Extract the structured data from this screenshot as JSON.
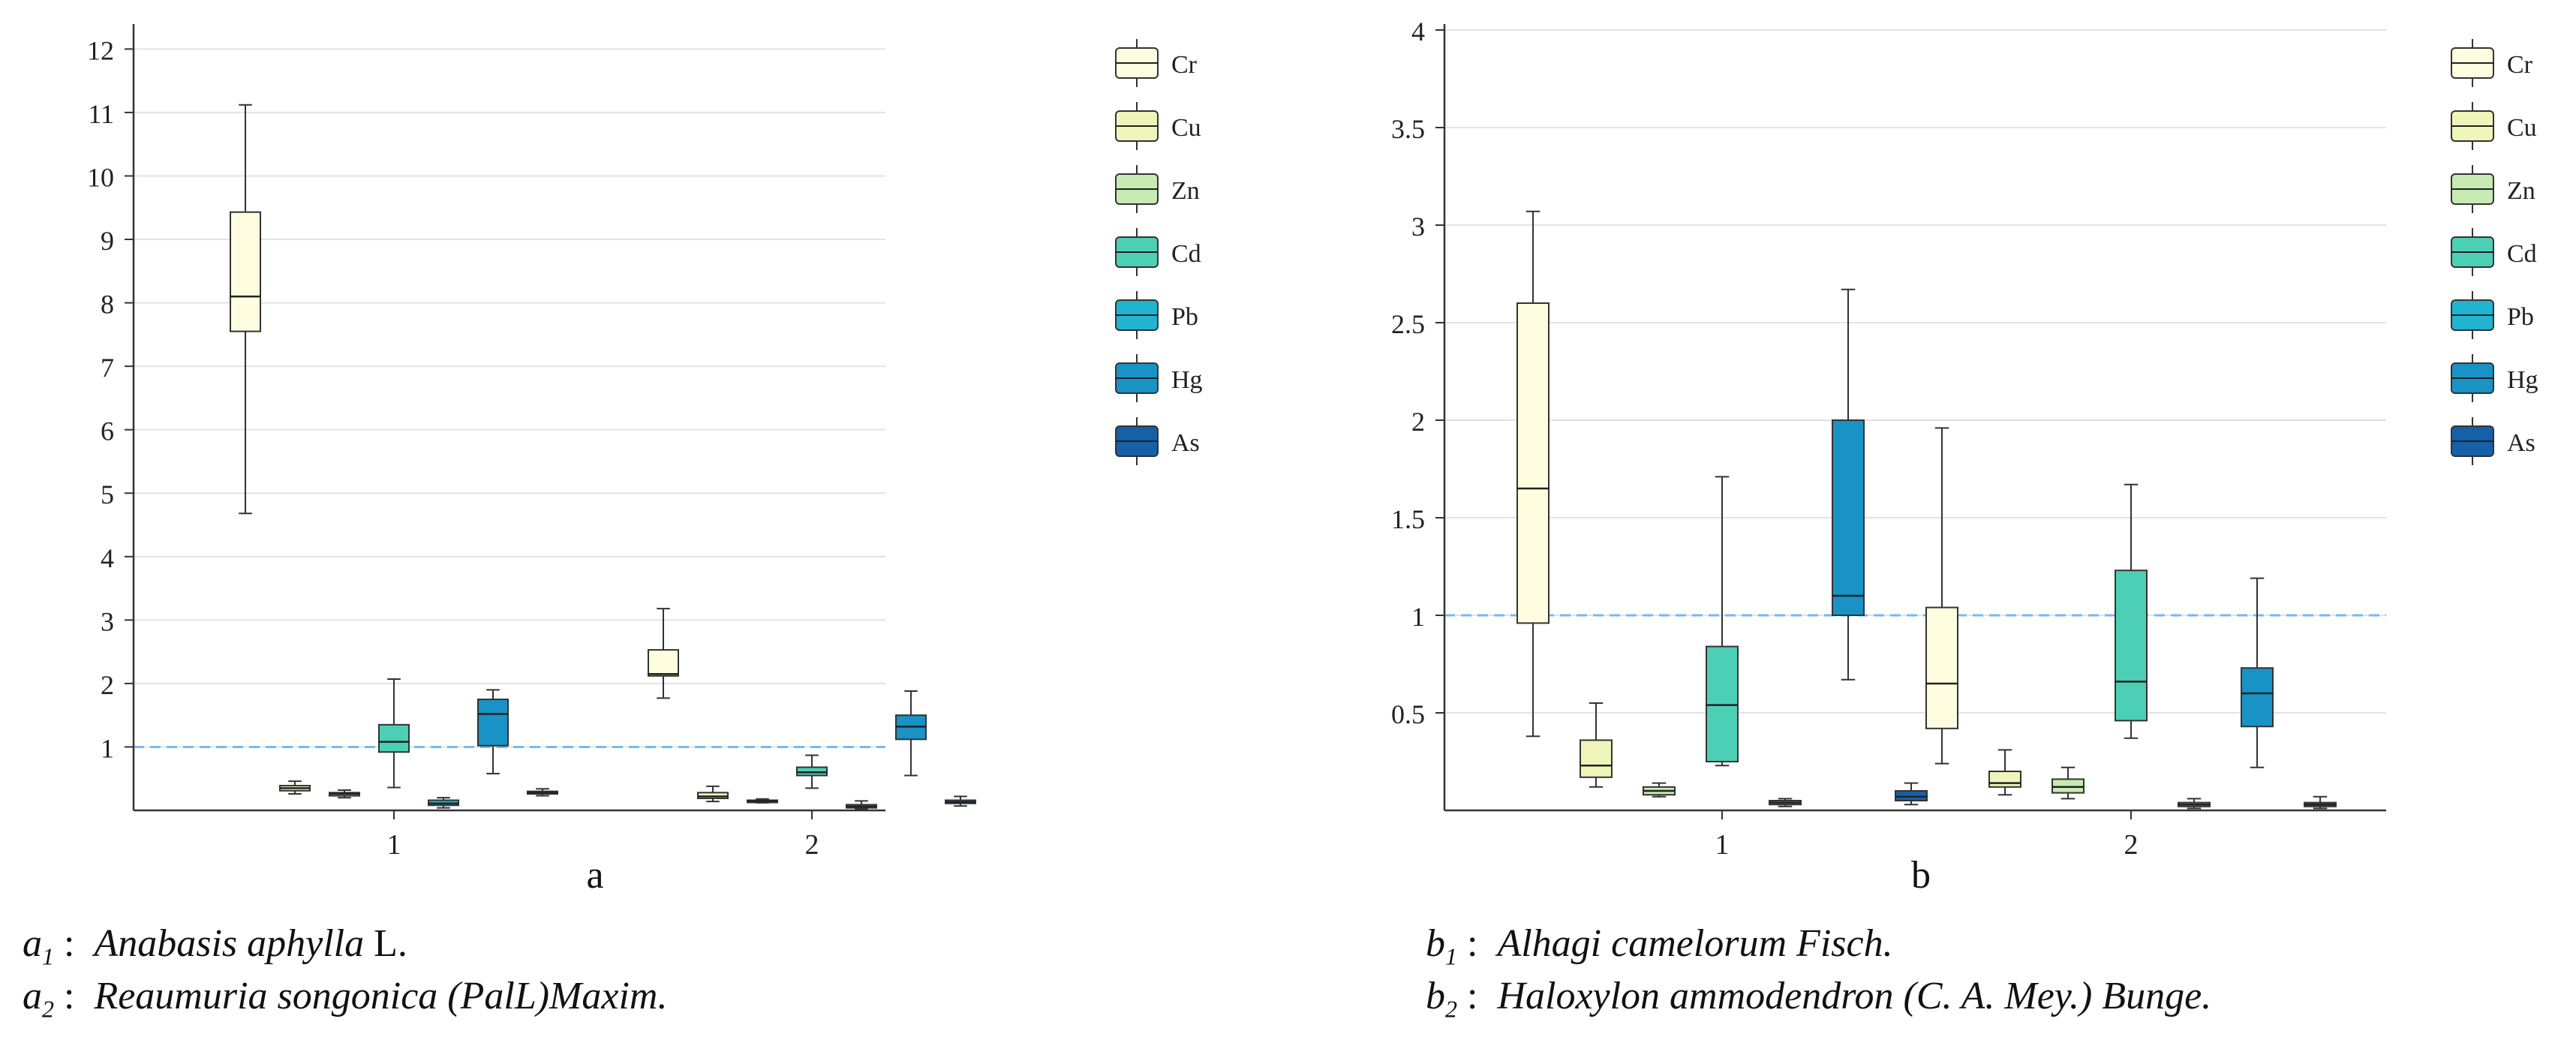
{
  "chart_data": [
    {
      "type": "boxplot",
      "panel_label": "a",
      "categories": [
        "1",
        "2"
      ],
      "ylim": [
        0,
        12.3
      ],
      "yticks": [
        "1",
        "2",
        "3",
        "4",
        "5",
        "6",
        "7",
        "8",
        "9",
        "10",
        "11",
        "12"
      ],
      "reference_line": 1,
      "grid": true,
      "legend": "top-right",
      "series": [
        {
          "name": "Cr",
          "color": "#fefde0",
          "boxes": [
            {
              "min": 4.68,
              "q1": 7.55,
              "median": 8.1,
              "q3": 9.43,
              "max": 11.12
            },
            {
              "min": 1.77,
              "q1": 2.12,
              "median": 2.15,
              "q3": 2.53,
              "max": 3.18
            }
          ]
        },
        {
          "name": "Cu",
          "color": "#eff5b8",
          "boxes": [
            {
              "min": 0.26,
              "q1": 0.31,
              "median": 0.35,
              "q3": 0.39,
              "max": 0.46
            },
            {
              "min": 0.14,
              "q1": 0.19,
              "median": 0.22,
              "q3": 0.28,
              "max": 0.38
            }
          ]
        },
        {
          "name": "Zn",
          "color": "#c8eab3",
          "boxes": [
            {
              "min": 0.2,
              "q1": 0.23,
              "median": 0.26,
              "q3": 0.28,
              "max": 0.32
            },
            {
              "min": 0.12,
              "q1": 0.14,
              "median": 0.15,
              "q3": 0.16,
              "max": 0.18
            }
          ]
        },
        {
          "name": "Cd",
          "color": "#4dcfb6",
          "boxes": [
            {
              "min": 0.36,
              "q1": 0.92,
              "median": 1.08,
              "q3": 1.35,
              "max": 2.07
            },
            {
              "min": 0.35,
              "q1": 0.55,
              "median": 0.6,
              "q3": 0.68,
              "max": 0.87
            }
          ]
        },
        {
          "name": "Pb",
          "color": "#1fb4cf",
          "boxes": [
            {
              "min": 0.04,
              "q1": 0.08,
              "median": 0.11,
              "q3": 0.16,
              "max": 0.2
            },
            {
              "min": 0.02,
              "q1": 0.04,
              "median": 0.06,
              "q3": 0.09,
              "max": 0.15
            }
          ]
        },
        {
          "name": "Hg",
          "color": "#1992c6",
          "boxes": [
            {
              "min": 0.58,
              "q1": 1.02,
              "median": 1.52,
              "q3": 1.75,
              "max": 1.9
            },
            {
              "min": 0.55,
              "q1": 1.12,
              "median": 1.32,
              "q3": 1.5,
              "max": 1.88
            }
          ]
        },
        {
          "name": "As",
          "color": "#1660a8",
          "boxes": [
            {
              "min": 0.23,
              "q1": 0.26,
              "median": 0.28,
              "q3": 0.3,
              "max": 0.34
            },
            {
              "min": 0.07,
              "q1": 0.11,
              "median": 0.13,
              "q3": 0.16,
              "max": 0.22
            }
          ]
        }
      ]
    },
    {
      "type": "boxplot",
      "panel_label": "b",
      "categories": [
        "1",
        "2"
      ],
      "ylim": [
        0,
        4
      ],
      "yticks": [
        "0.5",
        "1",
        "1.5",
        "2",
        "2.5",
        "3",
        "3.5",
        "4"
      ],
      "reference_line": 1,
      "grid": true,
      "legend": "top-right",
      "series": [
        {
          "name": "Cr",
          "color": "#fefde0",
          "boxes": [
            {
              "min": 0.38,
              "q1": 0.96,
              "median": 1.65,
              "q3": 2.6,
              "max": 3.07
            },
            {
              "min": 0.24,
              "q1": 0.42,
              "median": 0.65,
              "q3": 1.04,
              "max": 1.96
            }
          ]
        },
        {
          "name": "Cu",
          "color": "#eff5b8",
          "boxes": [
            {
              "min": 0.12,
              "q1": 0.17,
              "median": 0.23,
              "q3": 0.36,
              "max": 0.55
            },
            {
              "min": 0.08,
              "q1": 0.12,
              "median": 0.14,
              "q3": 0.2,
              "max": 0.31
            }
          ]
        },
        {
          "name": "Zn",
          "color": "#c8eab3",
          "boxes": [
            {
              "min": 0.07,
              "q1": 0.08,
              "median": 0.1,
              "q3": 0.12,
              "max": 0.14
            },
            {
              "min": 0.06,
              "q1": 0.09,
              "median": 0.12,
              "q3": 0.16,
              "max": 0.22
            }
          ]
        },
        {
          "name": "Cd",
          "color": "#4dcfb6",
          "boxes": [
            {
              "min": 0.23,
              "q1": 0.25,
              "median": 0.54,
              "q3": 0.84,
              "max": 1.71
            },
            {
              "min": 0.37,
              "q1": 0.46,
              "median": 0.66,
              "q3": 1.23,
              "max": 1.67
            }
          ]
        },
        {
          "name": "Pb",
          "color": "#1fb4cf",
          "boxes": [
            {
              "min": 0.02,
              "q1": 0.03,
              "median": 0.04,
              "q3": 0.05,
              "max": 0.06
            },
            {
              "min": 0.01,
              "q1": 0.02,
              "median": 0.03,
              "q3": 0.04,
              "max": 0.06
            }
          ]
        },
        {
          "name": "Hg",
          "color": "#1992c6",
          "boxes": [
            {
              "min": 0.67,
              "q1": 1.0,
              "median": 1.1,
              "q3": 2.0,
              "max": 2.67
            },
            {
              "min": 0.22,
              "q1": 0.43,
              "median": 0.6,
              "q3": 0.73,
              "max": 1.19
            }
          ]
        },
        {
          "name": "As",
          "color": "#1660a8",
          "boxes": [
            {
              "min": 0.03,
              "q1": 0.05,
              "median": 0.07,
              "q3": 0.1,
              "max": 0.14
            },
            {
              "min": 0.01,
              "q1": 0.02,
              "median": 0.03,
              "q3": 0.04,
              "max": 0.07
            }
          ]
        }
      ]
    }
  ],
  "captions": {
    "a1": {
      "prefix": "a",
      "sub": "1",
      "sep": " :  ",
      "italic": "Anabasis aphylla",
      "rest": " L."
    },
    "a2": {
      "prefix": "a",
      "sub": "2",
      "sep": " :  ",
      "italic": "Reaumuria songonica (PalL)Maxim.",
      "rest": ""
    },
    "b1": {
      "prefix": "b",
      "sub": "1",
      "sep": " :  ",
      "italic": "Alhagi camelorum Fisch.",
      "rest": ""
    },
    "b2": {
      "prefix": "b",
      "sub": "2",
      "sep": " :  ",
      "italic": "Haloxylon ammodendron (C. A. Mey.) Bunge.",
      "rest": ""
    }
  }
}
